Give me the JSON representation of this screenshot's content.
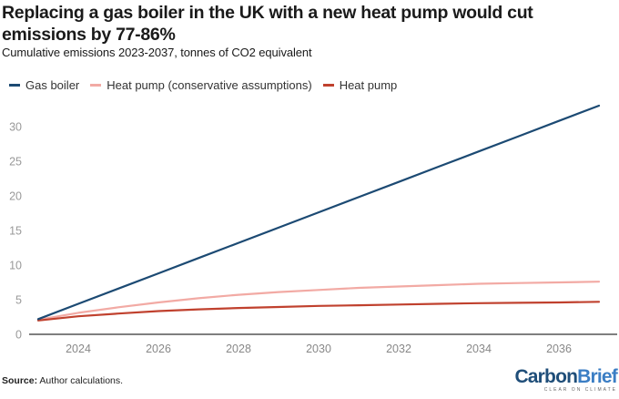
{
  "title": "Replacing a gas boiler in the UK with a new heat pump would cut emissions by 77-86%",
  "subtitle": "Cumulative emissions 2023-2037, tonnes of CO2 equivalent",
  "source_label": "Source:",
  "source_text": " Author calculations.",
  "logo": {
    "part1": "Carbon",
    "part2": "Brief",
    "tagline": "CLEAR ON CLIMATE"
  },
  "chart_data": {
    "type": "line",
    "title": "Replacing a gas boiler in the UK with a new heat pump would cut emissions by 77-86%",
    "subtitle": "Cumulative emissions 2023-2037, tonnes of CO2 equivalent",
    "xlabel": "",
    "ylabel": "",
    "xlim": [
      2023,
      2037
    ],
    "ylim": [
      0,
      33
    ],
    "x_ticks": [
      2024,
      2026,
      2028,
      2030,
      2032,
      2034,
      2036
    ],
    "y_ticks": [
      0,
      5,
      10,
      15,
      20,
      25,
      30
    ],
    "grid": false,
    "legend_position": "top-left",
    "x": [
      2023,
      2024,
      2025,
      2026,
      2027,
      2028,
      2029,
      2030,
      2031,
      2032,
      2033,
      2034,
      2035,
      2036,
      2037
    ],
    "series": [
      {
        "name": "Gas boiler",
        "color": "#1c4a73",
        "values": [
          2.2,
          4.4,
          6.6,
          8.8,
          11.0,
          13.2,
          15.4,
          17.6,
          19.8,
          22.0,
          24.2,
          26.4,
          28.6,
          30.8,
          33.0
        ]
      },
      {
        "name": "Heat pump (conservative assumptions)",
        "color": "#f2aaa4",
        "values": [
          2.1,
          3.1,
          3.9,
          4.6,
          5.2,
          5.7,
          6.1,
          6.4,
          6.7,
          6.9,
          7.1,
          7.3,
          7.4,
          7.5,
          7.6
        ]
      },
      {
        "name": "Heat pump",
        "color": "#c0412e",
        "values": [
          2.0,
          2.6,
          3.0,
          3.35,
          3.6,
          3.8,
          3.95,
          4.1,
          4.2,
          4.3,
          4.4,
          4.5,
          4.55,
          4.6,
          4.7
        ]
      }
    ]
  }
}
